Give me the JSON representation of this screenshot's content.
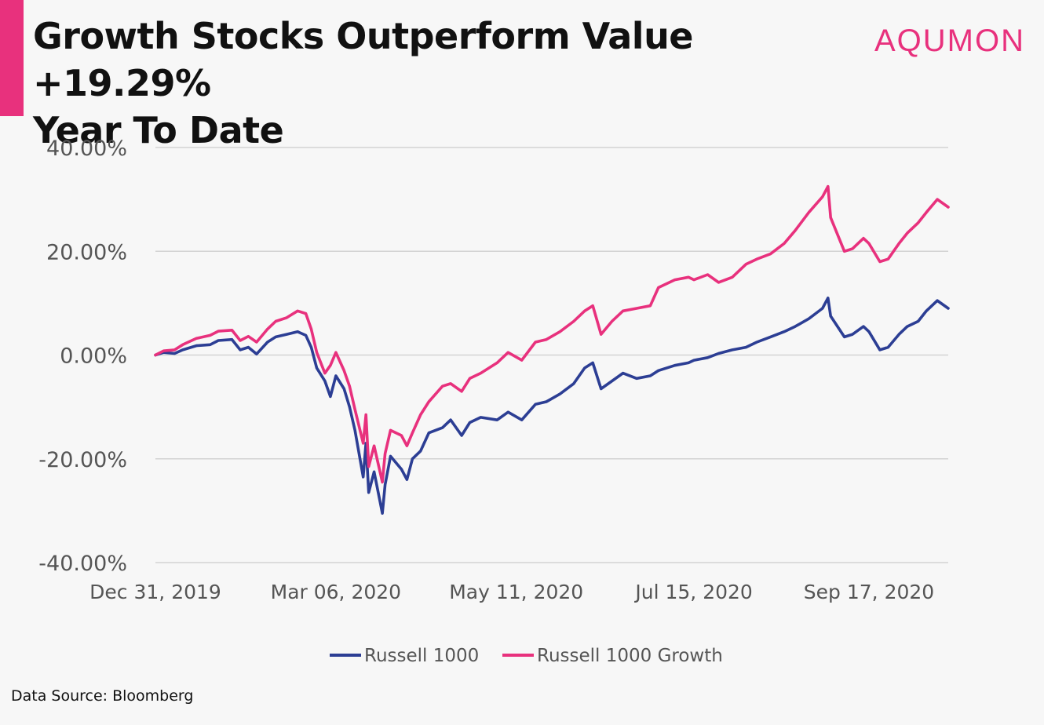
{
  "header": {
    "title_line1": "Growth Stocks Outperform Value +19.29%",
    "title_line2": "Year To Date",
    "brand": "AQUMON",
    "accent_color": "#e8317d"
  },
  "footer": {
    "source": "Data Source: Bloomberg"
  },
  "chart_data": {
    "type": "line",
    "title": "Growth Stocks Outperform Value +19.29% Year To Date",
    "xlabel": "",
    "ylabel": "",
    "ylim": [
      -40,
      40
    ],
    "y_ticks": [
      40,
      20,
      0,
      -20,
      -40
    ],
    "y_tick_labels": [
      "40.00%",
      "20.00%",
      "0.00%",
      "-20.00%",
      "-40.00%"
    ],
    "xlim": [
      "2019-12-31",
      "2020-10-16"
    ],
    "x_ticks": [
      "2019-12-31",
      "2020-03-06",
      "2020-05-11",
      "2020-07-15",
      "2020-09-17"
    ],
    "x_tick_labels": [
      "Dec 31, 2019",
      "Mar 06, 2020",
      "May 11, 2020",
      "Jul 15, 2020",
      "Sep 17, 2020"
    ],
    "grid": "horizontal",
    "legend_placement": "bottom-center",
    "series": [
      {
        "name": "Russell 1000",
        "color": "#2c3e94",
        "points": [
          [
            "2019-12-31",
            0.0
          ],
          [
            "2020-01-03",
            0.5
          ],
          [
            "2020-01-07",
            0.3
          ],
          [
            "2020-01-10",
            1.0
          ],
          [
            "2020-01-15",
            1.8
          ],
          [
            "2020-01-20",
            2.0
          ],
          [
            "2020-01-23",
            2.8
          ],
          [
            "2020-01-28",
            3.0
          ],
          [
            "2020-01-31",
            1.0
          ],
          [
            "2020-02-03",
            1.5
          ],
          [
            "2020-02-06",
            0.2
          ],
          [
            "2020-02-10",
            2.5
          ],
          [
            "2020-02-13",
            3.5
          ],
          [
            "2020-02-17",
            4.0
          ],
          [
            "2020-02-21",
            4.5
          ],
          [
            "2020-02-24",
            3.8
          ],
          [
            "2020-02-26",
            1.5
          ],
          [
            "2020-02-28",
            -2.5
          ],
          [
            "2020-03-02",
            -5.0
          ],
          [
            "2020-03-04",
            -8.0
          ],
          [
            "2020-03-06",
            -4.0
          ],
          [
            "2020-03-09",
            -6.5
          ],
          [
            "2020-03-11",
            -10.0
          ],
          [
            "2020-03-13",
            -14.5
          ],
          [
            "2020-03-16",
            -23.5
          ],
          [
            "2020-03-17",
            -17.0
          ],
          [
            "2020-03-18",
            -26.5
          ],
          [
            "2020-03-20",
            -22.5
          ],
          [
            "2020-03-23",
            -30.5
          ],
          [
            "2020-03-24",
            -25.0
          ],
          [
            "2020-03-26",
            -19.5
          ],
          [
            "2020-03-30",
            -22.0
          ],
          [
            "2020-04-01",
            -24.0
          ],
          [
            "2020-04-03",
            -20.0
          ],
          [
            "2020-04-06",
            -18.5
          ],
          [
            "2020-04-09",
            -15.0
          ],
          [
            "2020-04-14",
            -14.0
          ],
          [
            "2020-04-17",
            -12.5
          ],
          [
            "2020-04-21",
            -15.5
          ],
          [
            "2020-04-24",
            -13.0
          ],
          [
            "2020-04-28",
            -12.0
          ],
          [
            "2020-05-04",
            -12.5
          ],
          [
            "2020-05-08",
            -11.0
          ],
          [
            "2020-05-13",
            -12.5
          ],
          [
            "2020-05-18",
            -9.5
          ],
          [
            "2020-05-22",
            -9.0
          ],
          [
            "2020-05-27",
            -7.5
          ],
          [
            "2020-06-01",
            -5.5
          ],
          [
            "2020-06-05",
            -2.5
          ],
          [
            "2020-06-08",
            -1.5
          ],
          [
            "2020-06-11",
            -6.5
          ],
          [
            "2020-06-15",
            -5.0
          ],
          [
            "2020-06-19",
            -3.5
          ],
          [
            "2020-06-24",
            -4.5
          ],
          [
            "2020-06-29",
            -4.0
          ],
          [
            "2020-07-02",
            -3.0
          ],
          [
            "2020-07-08",
            -2.0
          ],
          [
            "2020-07-13",
            -1.5
          ],
          [
            "2020-07-15",
            -1.0
          ],
          [
            "2020-07-20",
            -0.5
          ],
          [
            "2020-07-24",
            0.3
          ],
          [
            "2020-07-29",
            1.0
          ],
          [
            "2020-08-03",
            1.5
          ],
          [
            "2020-08-07",
            2.5
          ],
          [
            "2020-08-12",
            3.5
          ],
          [
            "2020-08-17",
            4.5
          ],
          [
            "2020-08-21",
            5.5
          ],
          [
            "2020-08-26",
            7.0
          ],
          [
            "2020-08-31",
            9.0
          ],
          [
            "2020-09-02",
            11.0
          ],
          [
            "2020-09-03",
            7.5
          ],
          [
            "2020-09-08",
            3.5
          ],
          [
            "2020-09-11",
            4.0
          ],
          [
            "2020-09-15",
            5.5
          ],
          [
            "2020-09-17",
            4.5
          ],
          [
            "2020-09-21",
            1.0
          ],
          [
            "2020-09-24",
            1.5
          ],
          [
            "2020-09-28",
            4.0
          ],
          [
            "2020-10-01",
            5.5
          ],
          [
            "2020-10-05",
            6.5
          ],
          [
            "2020-10-08",
            8.5
          ],
          [
            "2020-10-12",
            10.5
          ],
          [
            "2020-10-16",
            9.0
          ]
        ]
      },
      {
        "name": "Russell 1000 Growth",
        "color": "#e8317d",
        "points": [
          [
            "2019-12-31",
            0.0
          ],
          [
            "2020-01-03",
            0.8
          ],
          [
            "2020-01-07",
            1.0
          ],
          [
            "2020-01-10",
            2.0
          ],
          [
            "2020-01-15",
            3.2
          ],
          [
            "2020-01-20",
            3.8
          ],
          [
            "2020-01-23",
            4.6
          ],
          [
            "2020-01-28",
            4.8
          ],
          [
            "2020-01-31",
            2.8
          ],
          [
            "2020-02-03",
            3.6
          ],
          [
            "2020-02-06",
            2.5
          ],
          [
            "2020-02-10",
            5.0
          ],
          [
            "2020-02-13",
            6.5
          ],
          [
            "2020-02-17",
            7.2
          ],
          [
            "2020-02-21",
            8.5
          ],
          [
            "2020-02-24",
            8.0
          ],
          [
            "2020-02-26",
            5.0
          ],
          [
            "2020-02-28",
            0.5
          ],
          [
            "2020-03-02",
            -3.5
          ],
          [
            "2020-03-04",
            -2.0
          ],
          [
            "2020-03-06",
            0.5
          ],
          [
            "2020-03-09",
            -3.0
          ],
          [
            "2020-03-11",
            -6.0
          ],
          [
            "2020-03-13",
            -10.5
          ],
          [
            "2020-03-16",
            -17.0
          ],
          [
            "2020-03-17",
            -11.5
          ],
          [
            "2020-03-18",
            -21.5
          ],
          [
            "2020-03-20",
            -17.5
          ],
          [
            "2020-03-23",
            -24.5
          ],
          [
            "2020-03-24",
            -19.0
          ],
          [
            "2020-03-26",
            -14.5
          ],
          [
            "2020-03-30",
            -15.5
          ],
          [
            "2020-04-01",
            -17.5
          ],
          [
            "2020-04-03",
            -15.0
          ],
          [
            "2020-04-06",
            -11.5
          ],
          [
            "2020-04-09",
            -9.0
          ],
          [
            "2020-04-14",
            -6.0
          ],
          [
            "2020-04-17",
            -5.5
          ],
          [
            "2020-04-21",
            -7.0
          ],
          [
            "2020-04-24",
            -4.5
          ],
          [
            "2020-04-28",
            -3.5
          ],
          [
            "2020-05-04",
            -1.5
          ],
          [
            "2020-05-08",
            0.5
          ],
          [
            "2020-05-13",
            -1.0
          ],
          [
            "2020-05-18",
            2.5
          ],
          [
            "2020-05-22",
            3.0
          ],
          [
            "2020-05-27",
            4.5
          ],
          [
            "2020-06-01",
            6.5
          ],
          [
            "2020-06-05",
            8.5
          ],
          [
            "2020-06-08",
            9.5
          ],
          [
            "2020-06-11",
            4.0
          ],
          [
            "2020-06-15",
            6.5
          ],
          [
            "2020-06-19",
            8.5
          ],
          [
            "2020-06-24",
            9.0
          ],
          [
            "2020-06-29",
            9.5
          ],
          [
            "2020-07-02",
            13.0
          ],
          [
            "2020-07-08",
            14.5
          ],
          [
            "2020-07-13",
            15.0
          ],
          [
            "2020-07-15",
            14.5
          ],
          [
            "2020-07-20",
            15.5
          ],
          [
            "2020-07-24",
            14.0
          ],
          [
            "2020-07-29",
            15.0
          ],
          [
            "2020-08-03",
            17.5
          ],
          [
            "2020-08-07",
            18.5
          ],
          [
            "2020-08-12",
            19.5
          ],
          [
            "2020-08-17",
            21.5
          ],
          [
            "2020-08-21",
            24.0
          ],
          [
            "2020-08-26",
            27.5
          ],
          [
            "2020-08-31",
            30.5
          ],
          [
            "2020-09-02",
            32.5
          ],
          [
            "2020-09-03",
            26.5
          ],
          [
            "2020-09-08",
            20.0
          ],
          [
            "2020-09-11",
            20.5
          ],
          [
            "2020-09-15",
            22.5
          ],
          [
            "2020-09-17",
            21.5
          ],
          [
            "2020-09-21",
            18.0
          ],
          [
            "2020-09-24",
            18.5
          ],
          [
            "2020-09-28",
            21.5
          ],
          [
            "2020-10-01",
            23.5
          ],
          [
            "2020-10-05",
            25.5
          ],
          [
            "2020-10-08",
            27.5
          ],
          [
            "2020-10-12",
            30.0
          ],
          [
            "2020-10-16",
            28.5
          ]
        ]
      }
    ]
  }
}
